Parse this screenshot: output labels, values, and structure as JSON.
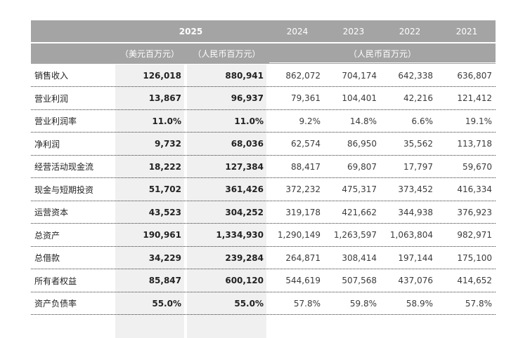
{
  "header": {
    "year_2025": "2025",
    "years": [
      "2024",
      "2023",
      "2022",
      "2021"
    ],
    "unit_usd": "（美元百万元）",
    "unit_rmb_2025": "（人民币百万元）",
    "unit_rmb_history": "（人民币百万元）"
  },
  "rows": [
    {
      "label": "销售收入",
      "usd": "126,018",
      "rmb": "880,941",
      "y2024": "862,072",
      "y2023": "704,174",
      "y2022": "642,338",
      "y2021": "636,807"
    },
    {
      "label": "营业利润",
      "usd": "13,867",
      "rmb": "96,937",
      "y2024": "79,361",
      "y2023": "104,401",
      "y2022": "42,216",
      "y2021": "121,412"
    },
    {
      "label": "营业利润率",
      "usd": "11.0%",
      "rmb": "11.0%",
      "y2024": "9.2%",
      "y2023": "14.8%",
      "y2022": "6.6%",
      "y2021": "19.1%"
    },
    {
      "label": "净利润",
      "usd": "9,732",
      "rmb": "68,036",
      "y2024": "62,574",
      "y2023": "86,950",
      "y2022": "35,562",
      "y2021": "113,718"
    },
    {
      "label": "经营活动现金流",
      "usd": "18,222",
      "rmb": "127,384",
      "y2024": "88,417",
      "y2023": "69,807",
      "y2022": "17,797",
      "y2021": "59,670"
    },
    {
      "label": "现金与短期投资",
      "usd": "51,702",
      "rmb": "361,426",
      "y2024": "372,232",
      "y2023": "475,317",
      "y2022": "373,452",
      "y2021": "416,334"
    },
    {
      "label": "运营资本",
      "usd": "43,523",
      "rmb": "304,252",
      "y2024": "319,178",
      "y2023": "421,662",
      "y2022": "344,938",
      "y2021": "376,923"
    },
    {
      "label": "总资产",
      "usd": "190,961",
      "rmb": "1,334,930",
      "y2024": "1,290,149",
      "y2023": "1,263,597",
      "y2022": "1,063,804",
      "y2021": "982,971"
    },
    {
      "label": "总借款",
      "usd": "34,229",
      "rmb": "239,284",
      "y2024": "264,871",
      "y2023": "308,414",
      "y2022": "197,144",
      "y2021": "175,100"
    },
    {
      "label": "所有者权益",
      "usd": "85,847",
      "rmb": "600,120",
      "y2024": "544,619",
      "y2023": "507,568",
      "y2022": "437,076",
      "y2021": "414,652"
    },
    {
      "label": "资产负债率",
      "usd": "55.0%",
      "rmb": "55.0%",
      "y2024": "57.8%",
      "y2023": "59.8%",
      "y2022": "58.9%",
      "y2021": "57.8%"
    }
  ],
  "colors": {
    "header_bg": "#a4a4a4",
    "header_text": "#ffffff",
    "highlight_bg": "#f0f0f0",
    "row_divider": "#333333"
  }
}
